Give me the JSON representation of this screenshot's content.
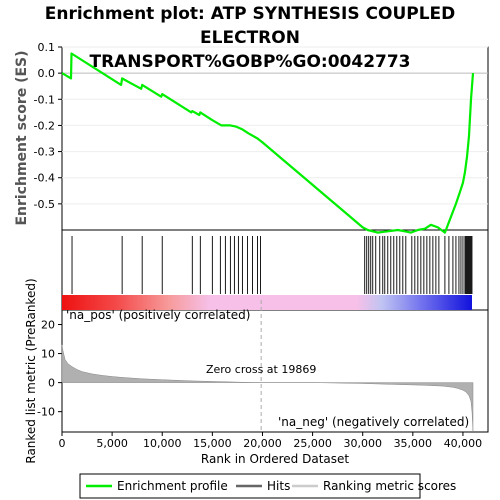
{
  "title_line1": "Enrichment plot: ATP SYNTHESIS COUPLED ELECTRON",
  "title_line2": "TRANSPORT%GOBP%GO:0042773",
  "chart_data": {
    "type": "line",
    "es_panel": {
      "ylabel": "Enrichment score (ES)",
      "ylim": [
        -0.6,
        0.1
      ],
      "yticks": [
        0.1,
        0.0,
        -0.1,
        -0.2,
        -0.3,
        -0.4,
        -0.5
      ],
      "ytick_labels": [
        "0.1",
        "0.0",
        "-0.1",
        "-0.2",
        "-0.3",
        "-0.4",
        "-0.5"
      ],
      "series": [
        {
          "name": "Enrichment profile",
          "color": "#00ee00",
          "x": [
            0,
            900,
            950,
            5900,
            6000,
            7900,
            8000,
            9900,
            10000,
            12900,
            13000,
            13700,
            13800,
            15000,
            15900,
            16800,
            17400,
            18000,
            18600,
            19500,
            20000,
            22000,
            24000,
            26000,
            28000,
            30000,
            30500,
            31500,
            32500,
            33500,
            34200,
            34800,
            35500,
            36200,
            36800,
            37500,
            38200,
            38500,
            38900,
            39300,
            39700,
            40000,
            40200,
            40400,
            40600,
            40800,
            41000
          ],
          "y": [
            0.0,
            -0.02,
            0.075,
            -0.045,
            -0.02,
            -0.06,
            -0.045,
            -0.09,
            -0.08,
            -0.15,
            -0.145,
            -0.16,
            -0.15,
            -0.18,
            -0.2,
            -0.2,
            -0.205,
            -0.215,
            -0.23,
            -0.25,
            -0.265,
            -0.33,
            -0.395,
            -0.46,
            -0.525,
            -0.59,
            -0.6,
            -0.61,
            -0.605,
            -0.6,
            -0.605,
            -0.61,
            -0.6,
            -0.595,
            -0.58,
            -0.59,
            -0.61,
            -0.58,
            -0.54,
            -0.5,
            -0.455,
            -0.42,
            -0.38,
            -0.32,
            -0.24,
            -0.1,
            0.0
          ]
        }
      ]
    },
    "hits_panel": {
      "legend_label": "Hits",
      "hit_positions": [
        1000,
        6000,
        8000,
        10000,
        13000,
        13800,
        15000,
        15800,
        16300,
        16800,
        17200,
        17600,
        18000,
        18500,
        19000,
        19500,
        19800,
        30200,
        30400,
        30600,
        30800,
        31000,
        31300,
        31700,
        32000,
        32200,
        32500,
        32800,
        33100,
        33400,
        33700,
        34000,
        34300,
        34900,
        35200,
        35500,
        35800,
        36100,
        36400,
        36700,
        37000,
        37300,
        37600,
        38200,
        38600,
        39000,
        39300,
        39600,
        39800,
        40000,
        40200,
        40300,
        40400,
        40500,
        40600,
        40700,
        40800,
        40900
      ]
    },
    "metric_panel": {
      "ylabel": "Ranked list metric (PreRanked)",
      "ylim": [
        -17,
        25
      ],
      "yticks": [
        20,
        10,
        0,
        -10
      ],
      "ytick_labels": [
        "20",
        "10",
        "0",
        "-10"
      ],
      "legend_label": "Ranking metric scores",
      "x": [
        0,
        100,
        300,
        600,
        1000,
        1500,
        2000,
        3000,
        4000,
        5000,
        6000,
        8000,
        10000,
        13000,
        16000,
        19000,
        19869,
        20500,
        25000,
        30000,
        33000,
        36000,
        38000,
        39000,
        39500,
        40000,
        40300,
        40600,
        40800,
        40900,
        41000
      ],
      "y": [
        13,
        11,
        8,
        6.5,
        5.5,
        4.5,
        3.8,
        3.0,
        2.5,
        2.1,
        1.8,
        1.3,
        1.0,
        0.6,
        0.3,
        0.05,
        0.0,
        0,
        0,
        -0.3,
        -0.6,
        -0.9,
        -1.2,
        -1.6,
        -2.0,
        -2.6,
        -3.2,
        -4.5,
        -6.5,
        -10,
        -17
      ],
      "pos_label": "'na_pos' (positively correlated)",
      "neg_label": "'na_neg' (negatively correlated)",
      "zero_cross_label": "Zero cross at 19869",
      "zero_cross": 19869
    },
    "xlabel": "Rank in Ordered Dataset",
    "xlim": [
      0,
      42500
    ],
    "xticks": [
      0,
      5000,
      10000,
      15000,
      20000,
      25000,
      30000,
      35000,
      40000
    ],
    "xtick_labels": [
      "0",
      "5,000",
      "10,000",
      "15,000",
      "20,000",
      "25,000",
      "30,000",
      "35,000",
      "40,000"
    ],
    "n_genes": 41000,
    "legend": [
      "Enrichment profile",
      "Hits",
      "Ranking metric scores"
    ]
  }
}
